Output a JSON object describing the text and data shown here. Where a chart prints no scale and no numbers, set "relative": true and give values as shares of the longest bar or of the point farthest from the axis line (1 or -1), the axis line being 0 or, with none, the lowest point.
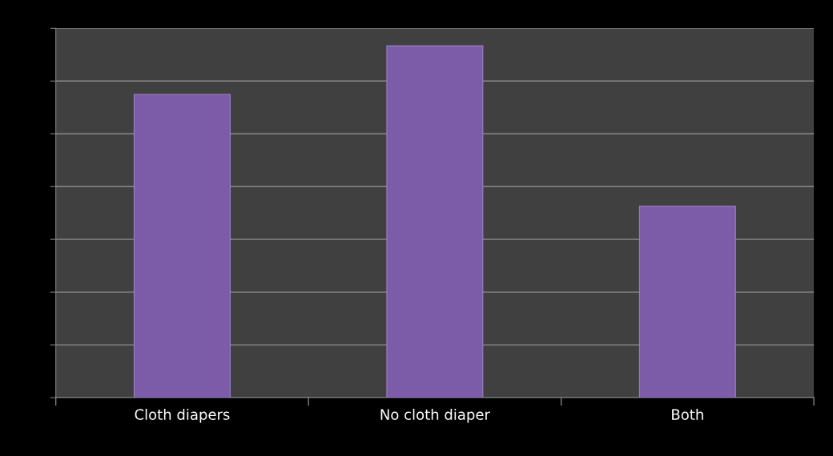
{
  "chart_data": {
    "type": "bar",
    "relative": true,
    "categories": [
      "Cloth diapers",
      "No cloth diaper",
      "Both"
    ],
    "series": [
      {
        "color": "#7c5ca8",
        "values": [
          0.862,
          1,
          0.544
        ]
      }
    ],
    "grid": "y",
    "legend": false
  }
}
